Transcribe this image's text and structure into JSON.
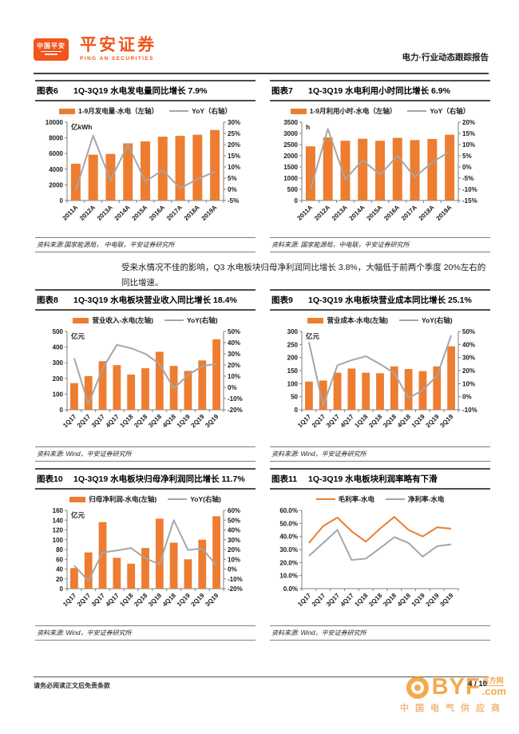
{
  "header": {
    "badge_text": "中国平安",
    "brand_cn": "平安证券",
    "brand_en": "PING AN SECURITIES",
    "report_type": "电力·行业动态跟踪报告"
  },
  "paragraph": "受来水情况不佳的影响，Q3 水电板块归母净利润同比增长 3.8%，大幅低于前两个季度 20%左右的同比增速。",
  "footer": {
    "disclaimer": "请务必阅读正文后免责条款",
    "page": "4 / 10"
  },
  "watermark": {
    "byf": "BYF",
    "dotcom": ".com",
    "baifang": "百方网",
    "tagline": "中国电气供应商"
  },
  "colors": {
    "accent_orange": "#ED7D31",
    "line_gray": "#A6A6A6",
    "brand_orange": "#F0561D"
  },
  "chart_data": [
    {
      "label": "图表6",
      "title": "1Q-3Q19 水电发电量同比增长 7.9%",
      "type": "bar",
      "unit": "亿kWh",
      "categories": [
        "2011A",
        "2012A",
        "2013A",
        "2014A",
        "2015A",
        "2016A",
        "2017A",
        "2018A",
        "2019A"
      ],
      "series": [
        {
          "name": "1-9月发电量-水电（左轴）",
          "type": "bar",
          "axis": "left",
          "color": "#ED7D31",
          "values": [
            4700,
            5850,
            5950,
            7300,
            7550,
            8150,
            8250,
            8400,
            9000
          ]
        },
        {
          "name": "YoY（右轴）",
          "type": "line",
          "axis": "right",
          "color": "#A6A6A6",
          "values": [
            -0.5,
            24,
            4,
            20,
            3.5,
            8.5,
            0.5,
            4.5,
            7.9
          ]
        }
      ],
      "left_axis": {
        "min": 0,
        "max": 10000,
        "ticks": [
          0,
          2000,
          4000,
          6000,
          8000,
          10000
        ],
        "fmt": "num"
      },
      "right_axis": {
        "min": -5,
        "max": 30,
        "ticks": [
          -5,
          0,
          5,
          10,
          15,
          20,
          25,
          30
        ],
        "fmt": "pct"
      },
      "source": "资料来源:国家能源局， 中电联，平安证券研究所"
    },
    {
      "label": "图表7",
      "title": "1Q-3Q19 水电利用小时同比增长 6.9%",
      "type": "bar",
      "unit": "h",
      "categories": [
        "2011A",
        "2012A",
        "2013A",
        "2014A",
        "2015A",
        "2016A",
        "2017A",
        "2018A",
        "2019A"
      ],
      "series": [
        {
          "name": "1-9月利用小时-水电（左轴）",
          "type": "bar",
          "axis": "left",
          "color": "#ED7D31",
          "values": [
            2420,
            2820,
            2670,
            2760,
            2670,
            2800,
            2700,
            2750,
            2940
          ]
        },
        {
          "name": "YoY（右轴）",
          "type": "line",
          "axis": "right",
          "color": "#A6A6A6",
          "values": [
            -10,
            17,
            -5.5,
            3,
            -3.5,
            5,
            -4.5,
            2,
            6.9
          ]
        }
      ],
      "left_axis": {
        "min": 0,
        "max": 3500,
        "ticks": [
          0,
          500,
          1000,
          1500,
          2000,
          2500,
          3000,
          3500
        ],
        "fmt": "num"
      },
      "right_axis": {
        "min": -15,
        "max": 20,
        "ticks": [
          -15,
          -10,
          -5,
          0,
          5,
          10,
          15,
          20
        ],
        "fmt": "pct"
      },
      "source": "资料来源: 国家能源局，中电联，平安证券研究所"
    },
    {
      "label": "图表8",
      "title": "1Q-3Q19 水电板块营业收入同比增长 18.4%",
      "type": "bar",
      "unit": "亿元",
      "categories": [
        "1Q17",
        "2Q17",
        "3Q17",
        "4Q17",
        "1Q18",
        "2Q18",
        "3Q18",
        "4Q18",
        "1Q19",
        "2Q19",
        "3Q19"
      ],
      "series": [
        {
          "name": "营业收入-水电(左轴)",
          "type": "bar",
          "axis": "left",
          "color": "#ED7D31",
          "values": [
            170,
            215,
            310,
            285,
            225,
            265,
            370,
            280,
            248,
            315,
            450
          ]
        },
        {
          "name": "YoY(右轴)",
          "type": "line",
          "axis": "right",
          "color": "#A6A6A6",
          "values": [
            26,
            -15,
            17,
            38,
            35,
            30,
            21,
            -1,
            11,
            19,
            21
          ]
        }
      ],
      "left_axis": {
        "min": 0,
        "max": 500,
        "ticks": [
          0,
          100,
          200,
          300,
          400,
          500
        ],
        "fmt": "num"
      },
      "right_axis": {
        "min": -20,
        "max": 50,
        "ticks": [
          -20,
          -10,
          0,
          10,
          20,
          30,
          40,
          50
        ],
        "fmt": "pct"
      },
      "source": "资料来源: Wind，平安证券研究所"
    },
    {
      "label": "图表9",
      "title": "1Q-3Q19 水电板块营业成本同比增长 25.1%",
      "type": "bar",
      "unit": "亿元",
      "categories": [
        "1Q17",
        "2Q17",
        "3Q17",
        "4Q17",
        "1Q18",
        "2Q18",
        "3Q18",
        "4Q18",
        "1Q19",
        "2Q19",
        "3Q19"
      ],
      "series": [
        {
          "name": "营业成本-水电(左轴)",
          "type": "bar",
          "axis": "left",
          "color": "#ED7D31",
          "values": [
            108,
            112,
            142,
            158,
            142,
            140,
            166,
            156,
            148,
            166,
            243
          ]
        },
        {
          "name": "YoY(右轴)",
          "type": "line",
          "axis": "right",
          "color": "#A6A6A6",
          "values": [
            42,
            -7,
            24,
            28,
            31,
            25,
            18,
            -1,
            5,
            16,
            47
          ]
        }
      ],
      "left_axis": {
        "min": 0,
        "max": 300,
        "ticks": [
          0,
          50,
          100,
          150,
          200,
          250,
          300
        ],
        "fmt": "num"
      },
      "right_axis": {
        "min": -10,
        "max": 50,
        "ticks": [
          -10,
          0,
          10,
          20,
          30,
          40,
          50
        ],
        "fmt": "pct"
      },
      "source": "资料来源: Wind，平安证券研究所"
    },
    {
      "label": "图表10",
      "title": "1Q-3Q19 水电板块归母净利润同比增长 11.7%",
      "type": "bar",
      "unit": "亿元",
      "categories": [
        "1Q17",
        "2Q17",
        "3Q17",
        "4Q17",
        "1Q18",
        "2Q18",
        "3Q18",
        "4Q18",
        "1Q19",
        "2Q19",
        "3Q19"
      ],
      "series": [
        {
          "name": "归母净利润-水电(左轴)",
          "type": "bar",
          "axis": "left",
          "color": "#ED7D31",
          "values": [
            42,
            74,
            136,
            63,
            51,
            83,
            143,
            94,
            60,
            100,
            148
          ]
        },
        {
          "name": "YoY(右轴)",
          "type": "line",
          "axis": "right",
          "color": "#A6A6A6",
          "values": [
            3.5,
            -12,
            17,
            19,
            21.5,
            11,
            5,
            50,
            19.5,
            21,
            3.8
          ]
        }
      ],
      "left_axis": {
        "min": 0,
        "max": 160,
        "ticks": [
          0,
          20,
          40,
          60,
          80,
          100,
          120,
          140,
          160
        ],
        "fmt": "num"
      },
      "right_axis": {
        "min": -20,
        "max": 60,
        "ticks": [
          -20,
          -10,
          0,
          10,
          20,
          30,
          40,
          50,
          60
        ],
        "fmt": "pct"
      },
      "source": "资料来源: Wind，平安证券研究所"
    },
    {
      "label": "图表11",
      "title": "1Q-3Q19 水电板块利润率略有下滑",
      "type": "line",
      "unit": "",
      "categories": [
        "1Q17",
        "2Q17",
        "3Q17",
        "4Q17",
        "1Q18",
        "2Q18",
        "3Q18",
        "4Q18",
        "1Q19",
        "2Q19",
        "3Q19"
      ],
      "series": [
        {
          "name": "毛利率-水电",
          "type": "line",
          "axis": "left",
          "color": "#ED7D31",
          "values": [
            35,
            48,
            54.5,
            44,
            36,
            46,
            55,
            45,
            40,
            47,
            46
          ]
        },
        {
          "name": "净利率-水电",
          "type": "line",
          "axis": "left",
          "color": "#A6A6A6",
          "values": [
            25,
            35,
            45,
            22,
            23,
            31,
            39.5,
            35,
            24.5,
            32.5,
            34
          ]
        }
      ],
      "left_axis": {
        "min": 0,
        "max": 60,
        "ticks": [
          0,
          10,
          20,
          30,
          40,
          50,
          60
        ],
        "fmt": "pct1"
      },
      "right_axis": null,
      "source": "资料来源: Wind，平安证券研究所"
    }
  ]
}
